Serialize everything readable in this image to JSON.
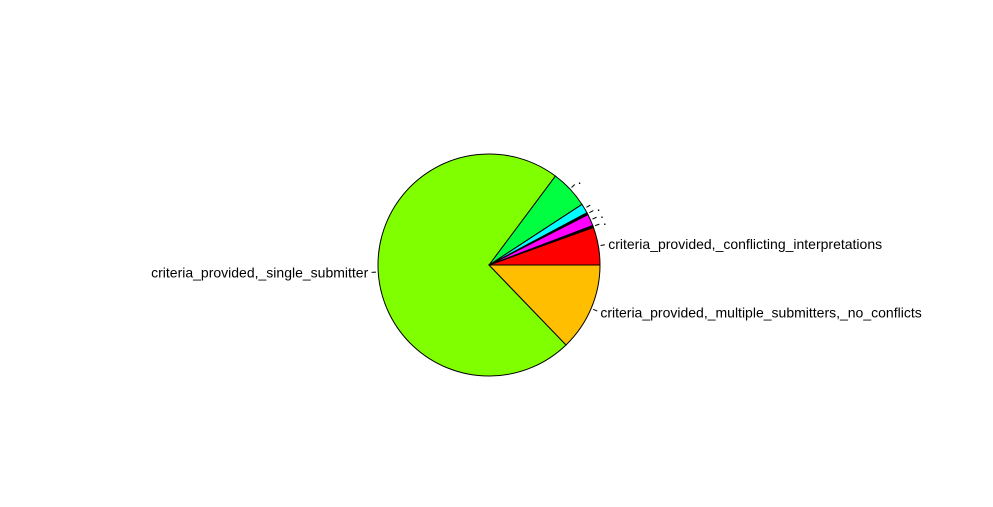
{
  "chart_data": {
    "type": "pie",
    "labels": [
      "criteria_provided,_conflicting_interpretations",
      "",
      "",
      "",
      "",
      "",
      "criteria_provided,_single_submitter",
      "criteria_provided,_multiple_submitters,_no_conflicts"
    ],
    "values": [
      5.5,
      0.3,
      1.7,
      0.3,
      1.4,
      5.6,
      72.4,
      12.8
    ],
    "colors": [
      "#FF0000",
      "#000000",
      "#FF00FF",
      "#000000",
      "#00FFFF",
      "#00FF40",
      "#80FF00",
      "#FFBF00"
    ],
    "label_dots": [
      "",
      "·",
      "·",
      "·",
      "",
      "·",
      "",
      ""
    ],
    "start_angle_deg": 0,
    "direction": "counterclockwise"
  }
}
